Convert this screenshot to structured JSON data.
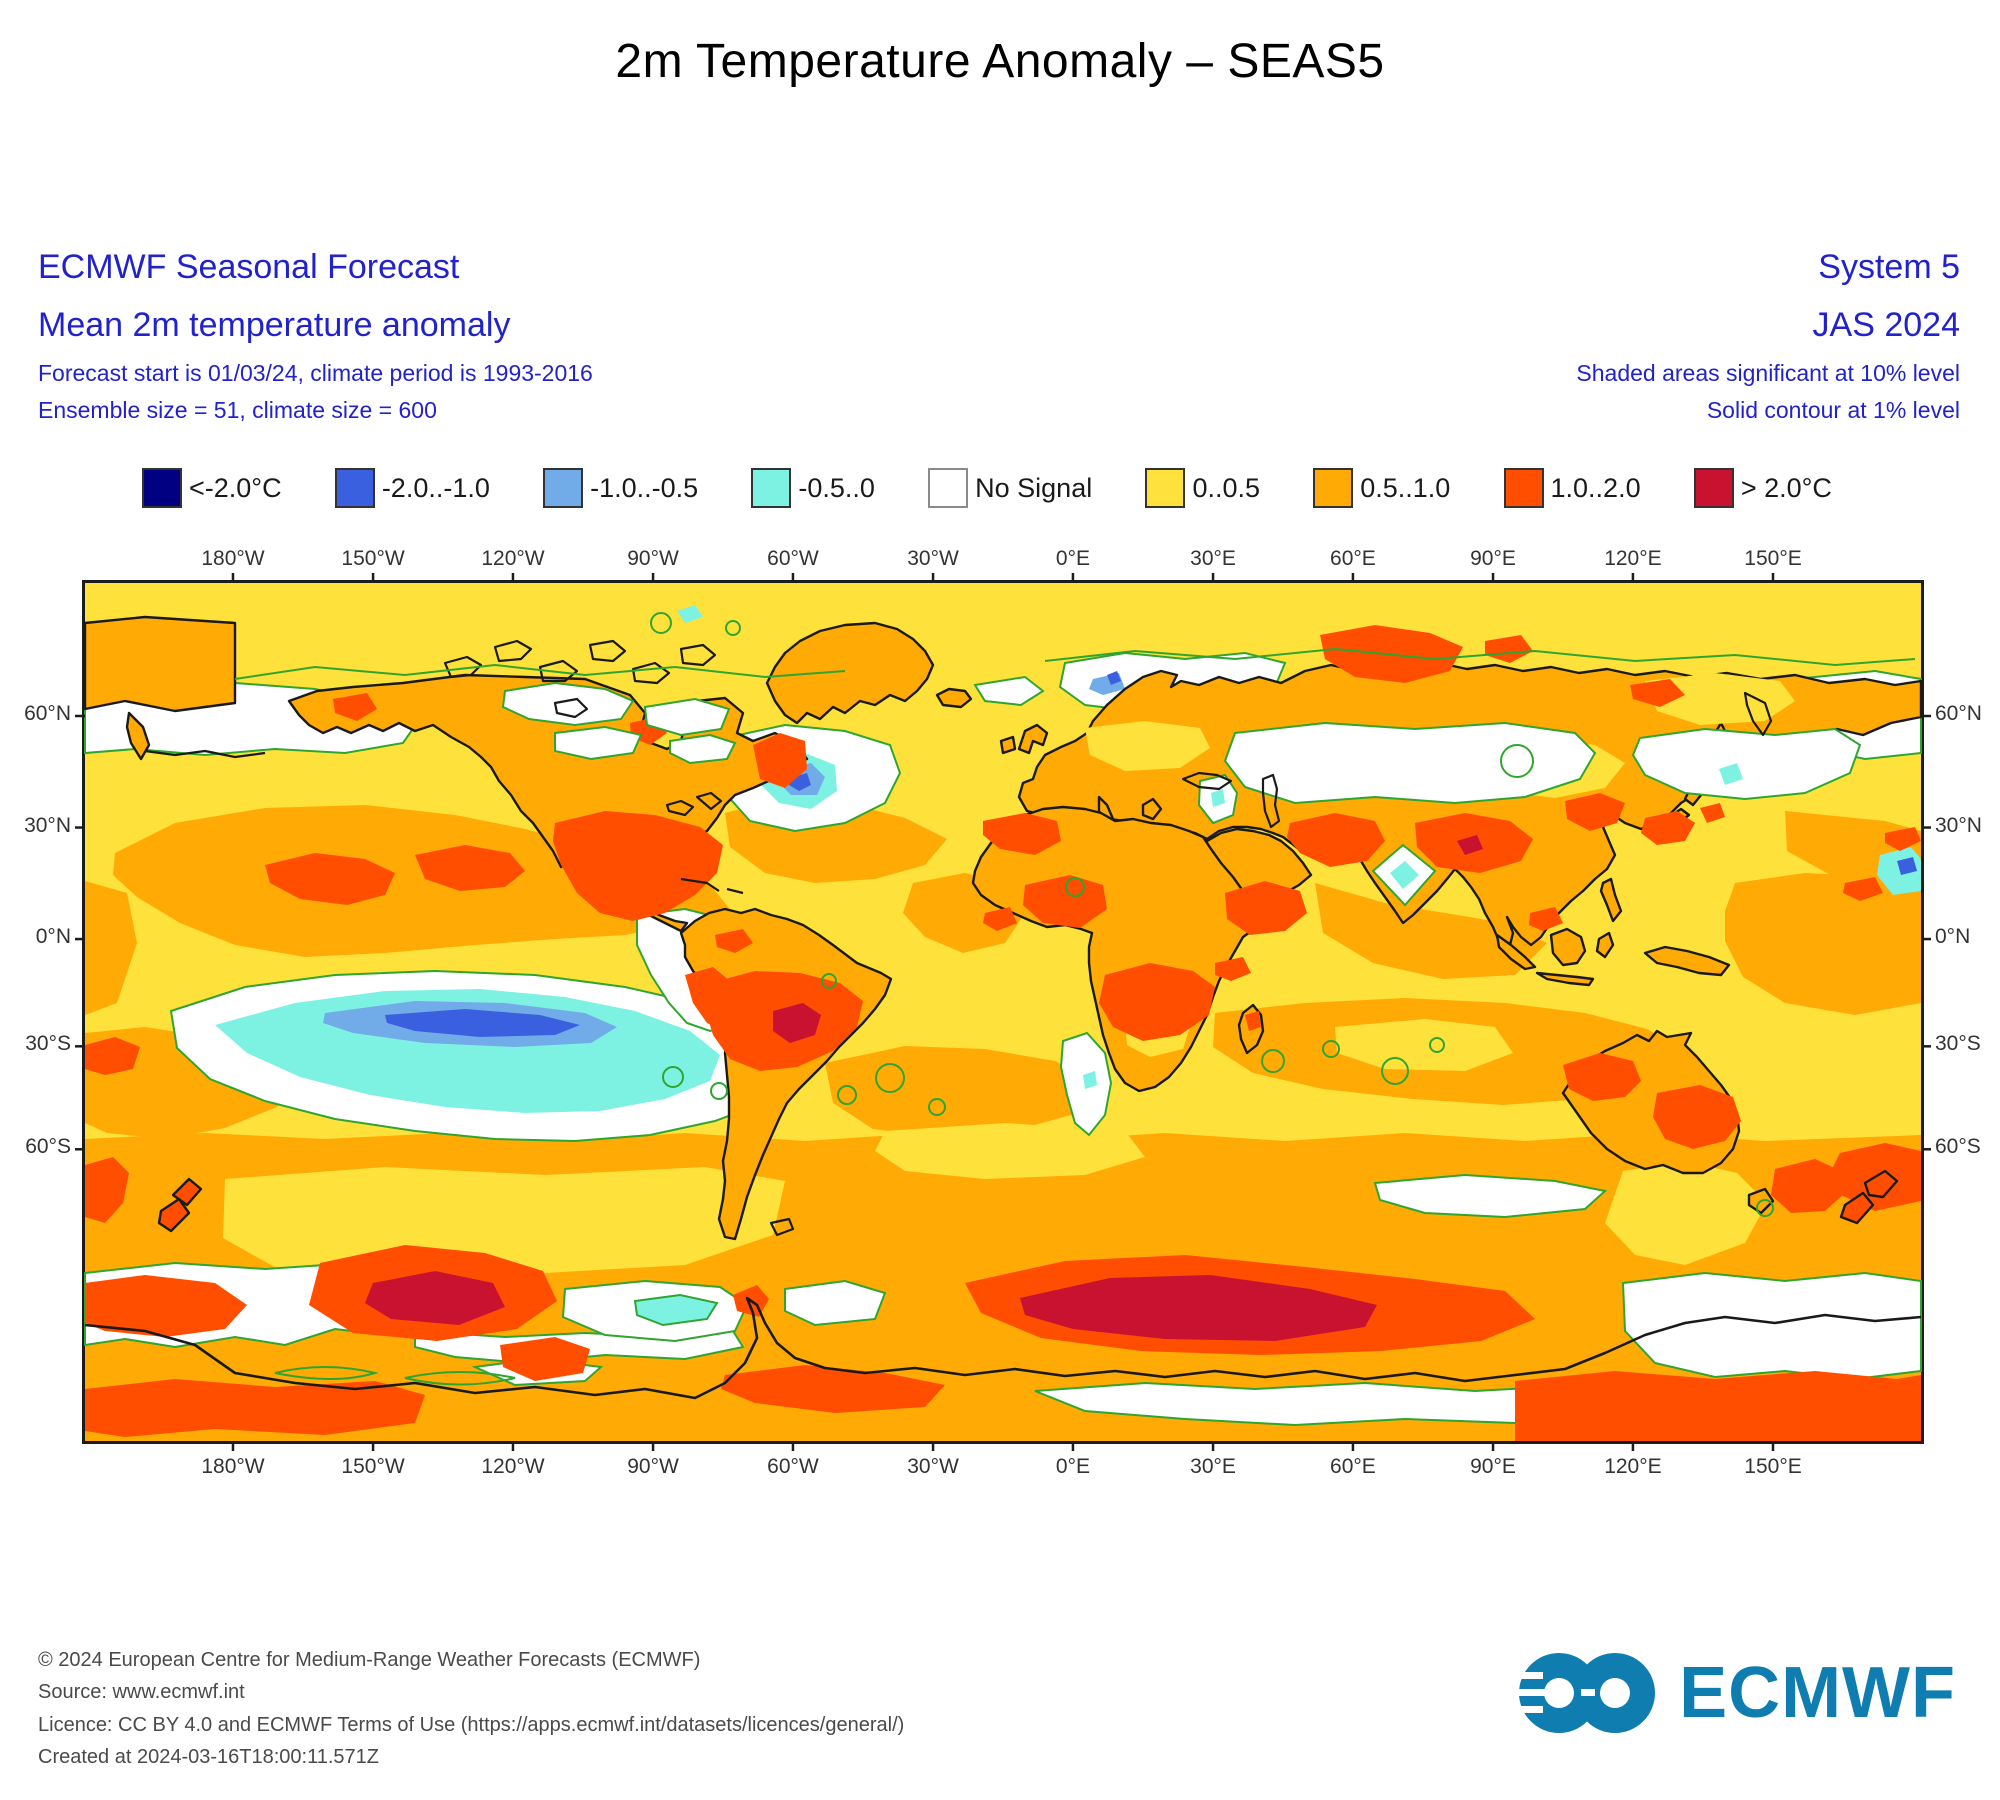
{
  "title": "2m Temperature Anomaly – SEAS5",
  "header_left": {
    "line1": "ECMWF Seasonal Forecast",
    "line2": "Mean 2m temperature anomaly",
    "line3": "Forecast start is 01/03/24, climate period is 1993-2016",
    "line4": "Ensemble size = 51, climate size = 600"
  },
  "header_right": {
    "line1": "System 5",
    "line2": "JAS 2024",
    "line3": "Shaded areas significant at 10% level",
    "line4": "Solid contour at 1% level"
  },
  "colors": {
    "header_text": "#2222CC",
    "logo": "#0F7DAF",
    "negative_2": "#000080",
    "negative_2_1": "#3A5FDF",
    "negative_1_05": "#72ACE8",
    "negative_05_0": "#7DF2E2",
    "no_signal": "#FFFFFF",
    "pos_0_05": "#FFE13B",
    "pos_05_1": "#FFAA05",
    "pos_1_2": "#FF4E00",
    "pos_gt2": "#C81230",
    "contour_green": "#2FA52F",
    "coastline": "#1a1a1a"
  },
  "legend": {
    "items": [
      {
        "label": "<-2.0°C",
        "color": "#000080",
        "border": "#333333"
      },
      {
        "label": "-2.0..-1.0",
        "color": "#3A5FDF",
        "border": "#333333"
      },
      {
        "label": "-1.0..-0.5",
        "color": "#72ACE8",
        "border": "#333333"
      },
      {
        "label": "-0.5..0",
        "color": "#7DF2E2",
        "border": "#333333"
      },
      {
        "label": "No Signal",
        "color": "#FFFFFF",
        "border": "#8a8a8a"
      },
      {
        "label": "0..0.5",
        "color": "#FFE13B",
        "border": "#333333"
      },
      {
        "label": "0.5..1.0",
        "color": "#FFAA05",
        "border": "#333333"
      },
      {
        "label": "1.0..2.0",
        "color": "#FF4E00",
        "border": "#333333"
      },
      {
        "label": "> 2.0°C",
        "color": "#C81230",
        "border": "#333333"
      }
    ]
  },
  "map": {
    "lon_ticks": [
      {
        "label": "180°W",
        "pct": 8.06
      },
      {
        "label": "150°W",
        "pct": 15.69
      },
      {
        "label": "120°W",
        "pct": 23.31
      },
      {
        "label": "90°W",
        "pct": 30.94
      },
      {
        "label": "60°W",
        "pct": 38.56
      },
      {
        "label": "30°W",
        "pct": 46.19
      },
      {
        "label": "0°E",
        "pct": 53.81
      },
      {
        "label": "30°E",
        "pct": 61.44
      },
      {
        "label": "60°E",
        "pct": 69.06
      },
      {
        "label": "90°E",
        "pct": 76.69
      },
      {
        "label": "120°E",
        "pct": 84.31
      },
      {
        "label": "150°E",
        "pct": 91.94
      }
    ],
    "lat_ticks": [
      {
        "label": "60°N",
        "pct": 15.5
      },
      {
        "label": "30°N",
        "pct": 28.5
      },
      {
        "label": "0°N",
        "pct": 41.5
      },
      {
        "label": "30°S",
        "pct": 54.0
      },
      {
        "label": "60°S",
        "pct": 66.0
      }
    ]
  },
  "footer": {
    "lines": [
      "© 2024 European Centre for Medium-Range Weather Forecasts (ECMWF)",
      "Source: www.ecmwf.int",
      "Licence: CC BY 4.0 and ECMWF Terms of Use (https://apps.ecmwf.int/datasets/licences/general/)",
      "Created at 2024-03-16T18:00:11.571Z"
    ]
  },
  "logo": {
    "text": "ECMWF"
  }
}
